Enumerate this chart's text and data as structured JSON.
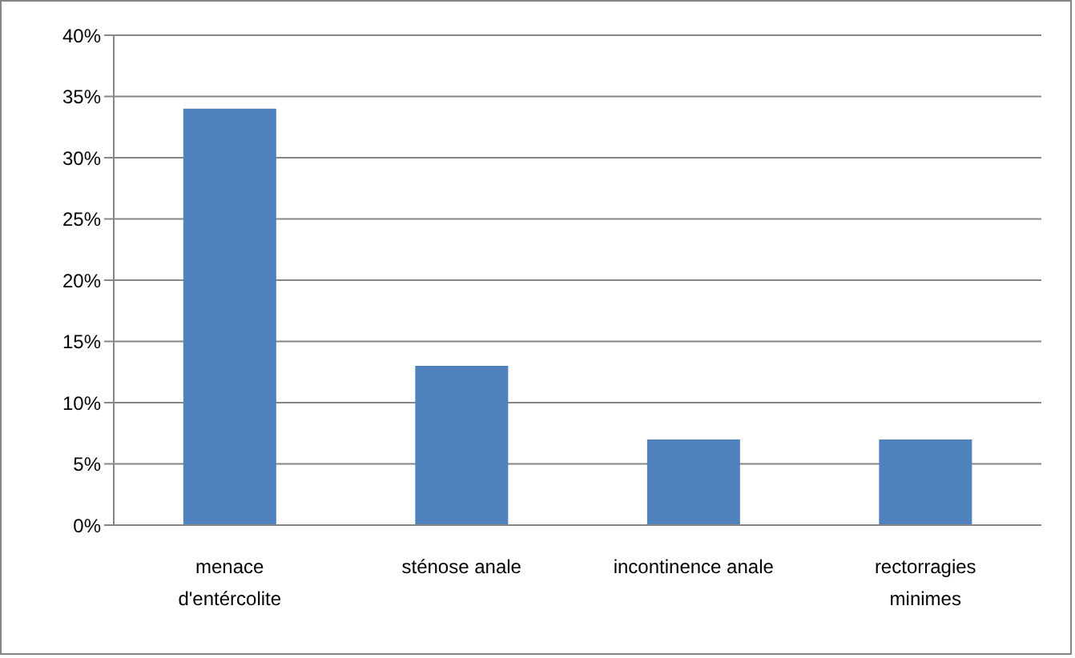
{
  "chart_data": {
    "type": "bar",
    "categories": [
      "menace d'entércolite",
      "sténose anale",
      "incontinence anale",
      "rectorragies minimes"
    ],
    "values": [
      34,
      13,
      7,
      7
    ],
    "color": "#4f81bd",
    "ylim": [
      0,
      40
    ],
    "yticks": [
      {
        "value": 0,
        "label": "0%"
      },
      {
        "value": 5,
        "label": "5%"
      },
      {
        "value": 10,
        "label": "10%"
      },
      {
        "value": 15,
        "label": "15%"
      },
      {
        "value": 20,
        "label": "20%"
      },
      {
        "value": 25,
        "label": "25%"
      },
      {
        "value": 30,
        "label": "30%"
      },
      {
        "value": 35,
        "label": "35%"
      },
      {
        "value": 40,
        "label": "40%"
      }
    ],
    "grid": "y"
  }
}
